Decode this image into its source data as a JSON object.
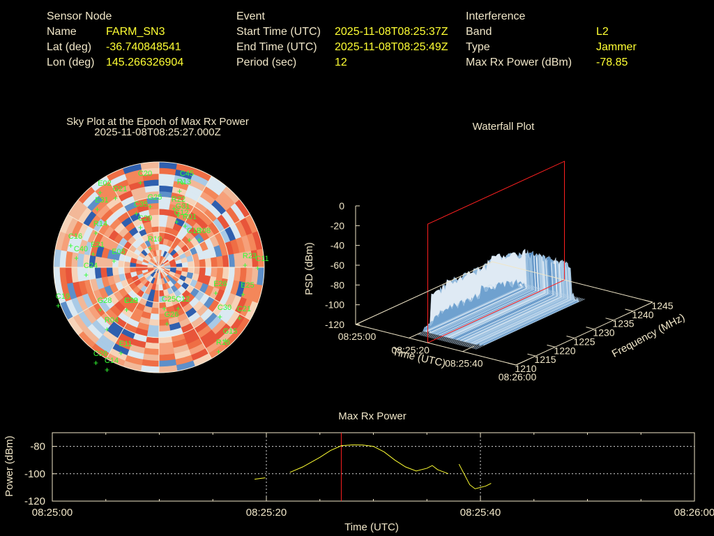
{
  "header": {
    "sensor": {
      "section": "Sensor Node",
      "rows": [
        {
          "label": "Name",
          "value": "FARM_SN3"
        },
        {
          "label": "Lat (deg)",
          "value": "-36.740848541"
        },
        {
          "label": "Lon (deg)",
          "value": "145.266326904"
        }
      ]
    },
    "event": {
      "section": "Event",
      "rows": [
        {
          "label": "Start Time (UTC)",
          "value": "2025-11-08T08:25:37Z"
        },
        {
          "label": "End Time (UTC)",
          "value": "2025-11-08T08:25:49Z"
        },
        {
          "label": "Period (sec)",
          "value": "12"
        }
      ]
    },
    "interference": {
      "section": "Interference",
      "rows": [
        {
          "label": "Band",
          "value": "L2"
        },
        {
          "label": "Type",
          "value": "Jammer"
        },
        {
          "label": "Max Rx Power (dBm)",
          "value": "-78.85"
        }
      ]
    }
  },
  "colors": {
    "text": "#f0e6c8",
    "value": "#ffff33",
    "sat_label": "#33ff33",
    "marker": "#ff2020",
    "trace": "#ffff33"
  },
  "chart_data": [
    {
      "type": "heatmap",
      "title": "Sky Plot at the Epoch of Max Rx Power",
      "subtitle": "2025-11-08T08:25:27.000Z",
      "satellites": [
        "C20",
        "C45",
        "E02",
        "G21",
        "R13",
        "E31",
        "G25",
        "R22",
        "G31",
        "C35",
        "R01",
        "C29",
        "R14",
        "G12",
        "C13",
        "C16",
        "E21",
        "C40",
        "R08",
        "R10",
        "R23",
        "C11",
        "E05",
        "C24",
        "E26",
        "C19",
        "E25",
        "G28",
        "C29",
        "C25",
        "C12",
        "C30",
        "R04",
        "C21",
        "G26",
        "E11",
        "G15",
        "C26",
        "C14",
        "R16",
        "E33"
      ]
    },
    {
      "type": "area",
      "title": "Waterfall Plot",
      "xlabel": "Time (UTC)",
      "ylabel": "Frequency (MHz)",
      "zlabel": "PSD (dBm)",
      "x_ticks": [
        "08:25:00",
        "08:25:20",
        "08:25:40",
        "08:26:00"
      ],
      "y_ticks": [
        "1210",
        "1215",
        "1220",
        "1225",
        "1230",
        "1235",
        "1240",
        "1245"
      ],
      "z_ticks": [
        "0",
        "-20",
        "-40",
        "-60",
        "-80",
        "-100",
        "-120"
      ],
      "xlim": [
        0,
        60
      ],
      "ylim": [
        1210,
        1245
      ],
      "zlim": [
        -120,
        0
      ],
      "marker_time": 27
    },
    {
      "type": "line",
      "title": "Max Rx Power",
      "xlabel": "Time (UTC)",
      "ylabel": "Power (dBm)",
      "x_ticks": [
        "08:25:00",
        "08:25:20",
        "08:25:40",
        "08:26:00"
      ],
      "y_ticks": [
        "-80",
        "-100",
        "-120"
      ],
      "xlim": [
        0,
        60
      ],
      "ylim": [
        -120,
        -70
      ],
      "marker_time": 27,
      "segments": [
        [
          [
            18.9,
            -104
          ],
          [
            19.9,
            -103
          ]
        ],
        [
          [
            22.2,
            -99
          ],
          [
            23.4,
            -95
          ],
          [
            25.0,
            -88
          ],
          [
            26.0,
            -83
          ],
          [
            27.0,
            -79.5
          ],
          [
            28.0,
            -78.9
          ],
          [
            29.0,
            -79
          ],
          [
            30.0,
            -80
          ],
          [
            31.0,
            -84
          ],
          [
            32.0,
            -90
          ],
          [
            33.0,
            -95
          ],
          [
            34.0,
            -98
          ],
          [
            35.0,
            -96
          ],
          [
            35.5,
            -94
          ],
          [
            36.0,
            -97
          ],
          [
            37.0,
            -100
          ]
        ],
        [
          [
            38.0,
            -93
          ],
          [
            39.0,
            -108
          ],
          [
            39.5,
            -111
          ],
          [
            40.5,
            -109
          ],
          [
            41.0,
            -107
          ]
        ]
      ]
    }
  ]
}
